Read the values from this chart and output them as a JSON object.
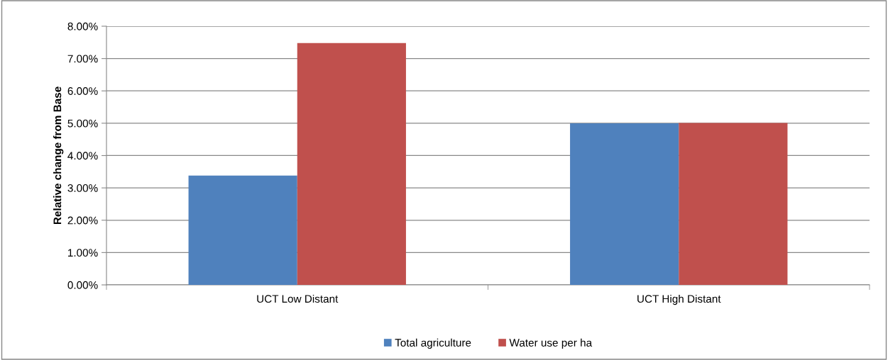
{
  "chart_data": {
    "type": "bar",
    "ylabel": "Relative change from Base",
    "categories": [
      "UCT Low Distant",
      "UCT High Distant"
    ],
    "series": [
      {
        "name": "Total agriculture",
        "color": "#4f81bd",
        "values": [
          3.38,
          5.0
        ]
      },
      {
        "name": "Water use per ha",
        "color": "#c0504d",
        "values": [
          7.48,
          5.01
        ]
      }
    ],
    "ylim": [
      0,
      8
    ],
    "yticks": [
      {
        "value": 0,
        "label": "0.00%"
      },
      {
        "value": 1,
        "label": "1.00%"
      },
      {
        "value": 2,
        "label": "2.00%"
      },
      {
        "value": 3,
        "label": "3.00%"
      },
      {
        "value": 4,
        "label": "4.00%"
      },
      {
        "value": 5,
        "label": "5.00%"
      },
      {
        "value": 6,
        "label": "6.00%"
      },
      {
        "value": 7,
        "label": "7.00%"
      },
      {
        "value": 8,
        "label": "8.00%"
      }
    ],
    "grid": "y",
    "legend": "bottom"
  }
}
